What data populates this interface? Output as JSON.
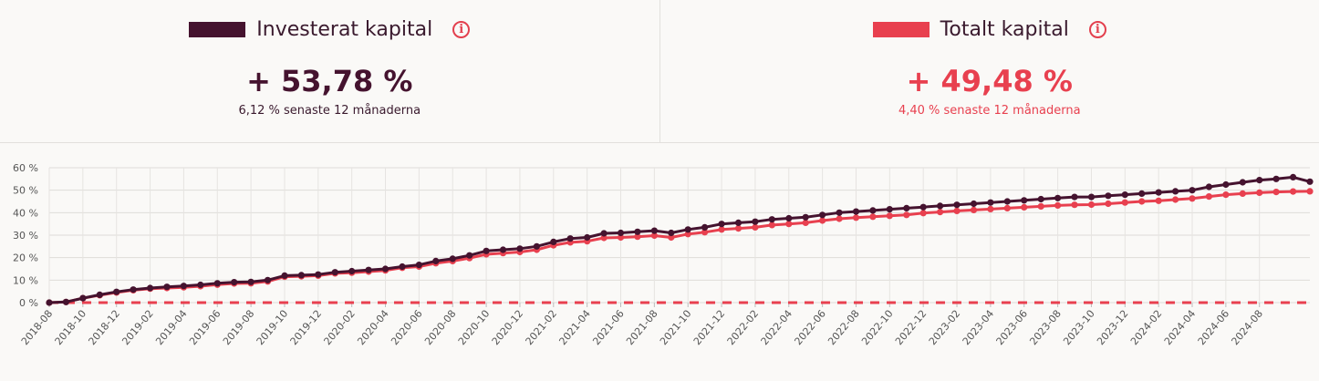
{
  "stats": {
    "invested": {
      "label": "Investerat kapital",
      "value": "+ 53,78 %",
      "sub": "6,12 % senaste 12 månaderna",
      "color": "#45132f"
    },
    "total": {
      "label": "Totalt kapital",
      "value": "+ 49,48 %",
      "sub": "4,40 % senaste 12 månaderna",
      "color": "#e8404f"
    }
  },
  "chart_data": {
    "type": "line",
    "x_start": "2018-08",
    "x_ticks": [
      "2018-08",
      "2018-10",
      "2018-12",
      "2019-02",
      "2019-04",
      "2019-06",
      "2019-08",
      "2019-10",
      "2019-12",
      "2020-02",
      "2020-04",
      "2020-06",
      "2020-08",
      "2020-10",
      "2020-12",
      "2021-02",
      "2021-04",
      "2021-06",
      "2021-08",
      "2021-10",
      "2021-12",
      "2022-02",
      "2022-04",
      "2022-06",
      "2022-08",
      "2022-10",
      "2022-12",
      "2023-02",
      "2023-04",
      "2023-06",
      "2023-08",
      "2023-10",
      "2023-12",
      "2024-02",
      "2024-04",
      "2024-06",
      "2024-08"
    ],
    "y_ticks": [
      "60 %",
      "50 %",
      "40 %",
      "30 %",
      "20 %",
      "10 %",
      "0 %"
    ],
    "ylim": [
      0,
      60
    ],
    "grid": true,
    "baseline": 0,
    "series": [
      {
        "name": "Investerat kapital",
        "color": "#45132f",
        "values": [
          0,
          0.3,
          2,
          3.5,
          4.8,
          5.8,
          6.5,
          7,
          7.4,
          7.9,
          8.6,
          9.1,
          9.2,
          10,
          12,
          12.2,
          12.5,
          13.5,
          14,
          14.5,
          15,
          16,
          16.8,
          18.5,
          19.5,
          21,
          23,
          23.5,
          24,
          25,
          27,
          28.5,
          29,
          30.8,
          31,
          31.5,
          32,
          31,
          32.5,
          33.5,
          35,
          35.5,
          36,
          37,
          37.5,
          38,
          39,
          40,
          40.5,
          41,
          41.5,
          42,
          42.5,
          43,
          43.5,
          44,
          44.5,
          45,
          45.5,
          46,
          46.5,
          47,
          47,
          47.5,
          48,
          48.5,
          49,
          49.5,
          50,
          51.5,
          52.5,
          53.5,
          54.5,
          55,
          55.8,
          53.8
        ]
      },
      {
        "name": "Totalt kapital",
        "color": "#e8404f",
        "values": [
          0,
          0.3,
          2,
          3.3,
          4.5,
          5.5,
          6.2,
          6.5,
          6.8,
          7.3,
          8,
          8.5,
          8.6,
          9.4,
          11.5,
          11.7,
          12,
          13,
          13.3,
          13.8,
          14.3,
          15.5,
          16,
          17.5,
          18.5,
          19.8,
          21.5,
          22,
          22.5,
          23.5,
          25.5,
          26.8,
          27.3,
          28.8,
          29,
          29.3,
          29.8,
          29,
          30.5,
          31.3,
          32.5,
          33,
          33.5,
          34.5,
          35,
          35.5,
          36.5,
          37.3,
          37.8,
          38.2,
          38.6,
          39,
          39.8,
          40.3,
          40.8,
          41.2,
          41.6,
          42,
          42.4,
          42.8,
          43.2,
          43.5,
          43.6,
          44,
          44.5,
          45,
          45.3,
          45.8,
          46.3,
          47.2,
          48,
          48.5,
          48.9,
          49.2,
          49.4,
          49.5
        ]
      }
    ]
  }
}
